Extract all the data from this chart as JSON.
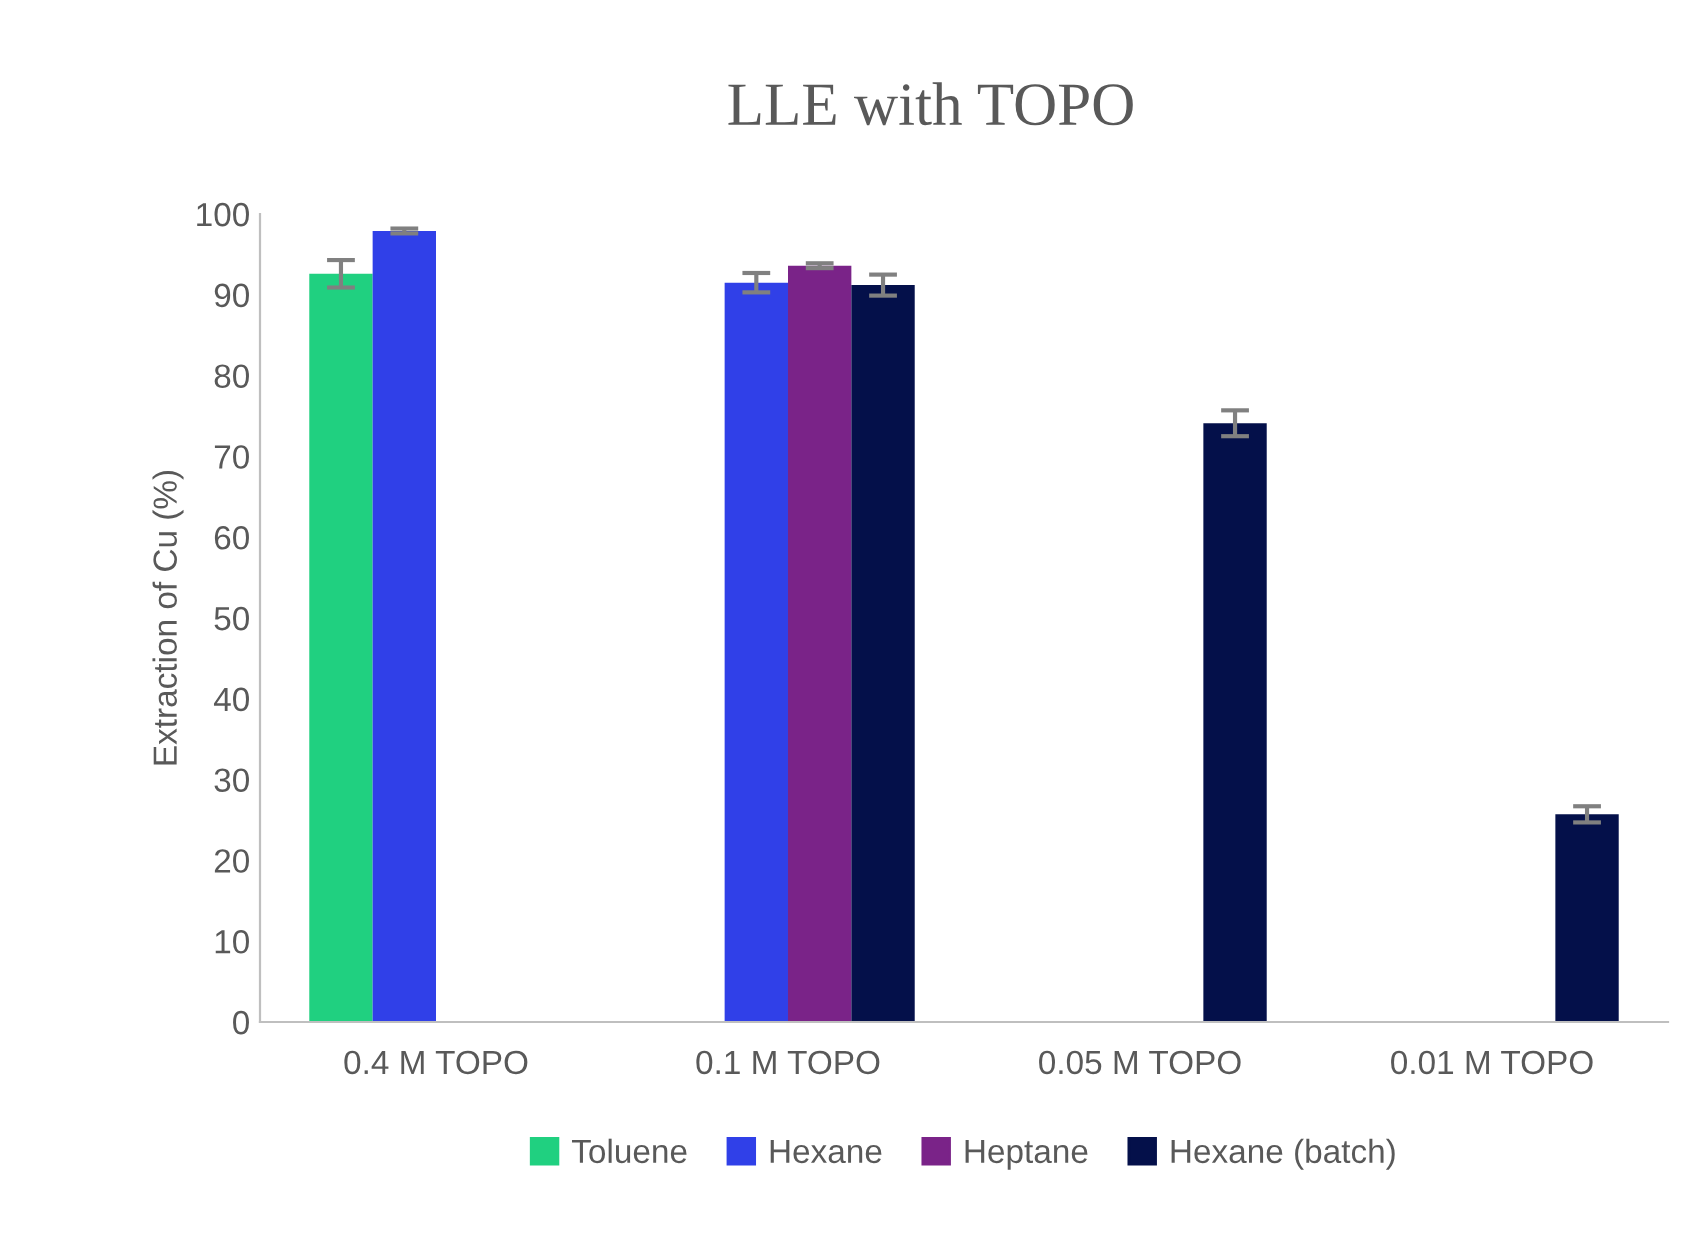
{
  "chart_data": {
    "type": "bar",
    "title": "LLE with TOPO",
    "ylabel": "Extraction of Cu (%)",
    "categories": [
      "0.4 M TOPO",
      "0.1 M TOPO",
      "0.05 M TOPO",
      "0.01 M TOPO"
    ],
    "series": [
      {
        "name": "Toluene",
        "color": "#20d080",
        "values": [
          92.6,
          null,
          null,
          null
        ],
        "errors": [
          1.7,
          null,
          null,
          null
        ]
      },
      {
        "name": "Hexane",
        "color": "#3040e8",
        "values": [
          97.9,
          91.5,
          null,
          null
        ],
        "errors": [
          0.3,
          1.2,
          null,
          null
        ]
      },
      {
        "name": "Heptane",
        "color": "#7a2388",
        "values": [
          null,
          93.6,
          null,
          null
        ],
        "errors": [
          null,
          0.3,
          null,
          null
        ]
      },
      {
        "name": "Hexane (batch)",
        "color": "#04104a",
        "values": [
          null,
          91.2,
          74.1,
          25.7
        ],
        "errors": [
          null,
          1.3,
          1.6,
          1.0
        ]
      }
    ],
    "ylim": [
      0,
      100
    ],
    "yticks": [
      0,
      10,
      20,
      30,
      40,
      50,
      60,
      70,
      80,
      90,
      100
    ],
    "grid": false,
    "legend": "bottom"
  }
}
